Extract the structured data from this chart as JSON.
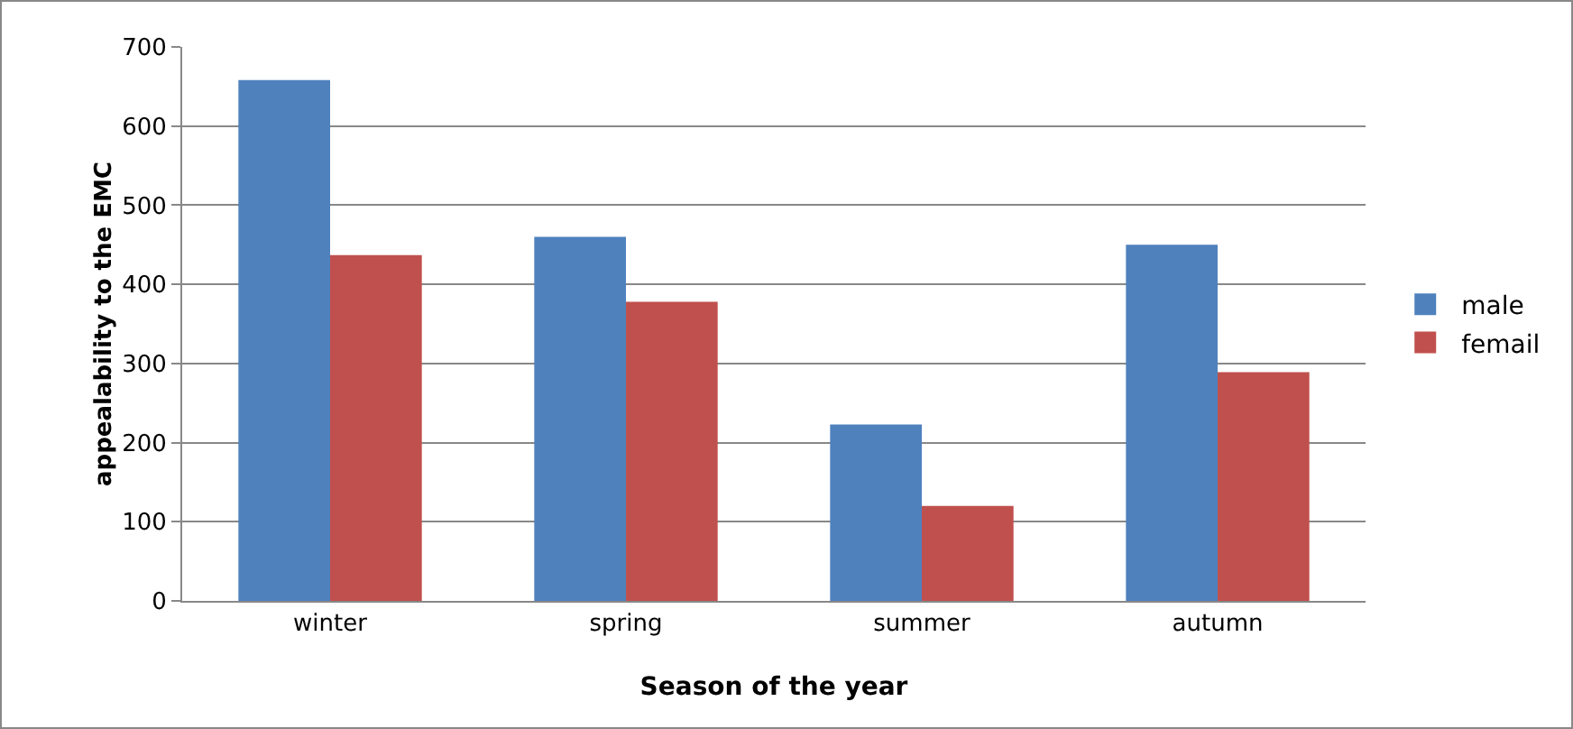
{
  "chart_data": {
    "type": "bar",
    "xlabel": "Season of the year",
    "ylabel": "appealability to the EMC",
    "categories": [
      "winter",
      "spring",
      "summer",
      "autumn"
    ],
    "series": [
      {
        "name": "male",
        "color": "#4f81bd",
        "values": [
          658,
          460,
          223,
          450
        ]
      },
      {
        "name": "femail",
        "color": "#c0504d",
        "values": [
          437,
          378,
          120,
          289
        ]
      }
    ],
    "ylim": [
      0,
      700
    ],
    "yticks": [
      0,
      100,
      200,
      300,
      400,
      500,
      600,
      700
    ],
    "grid": "y",
    "legend": "right"
  }
}
